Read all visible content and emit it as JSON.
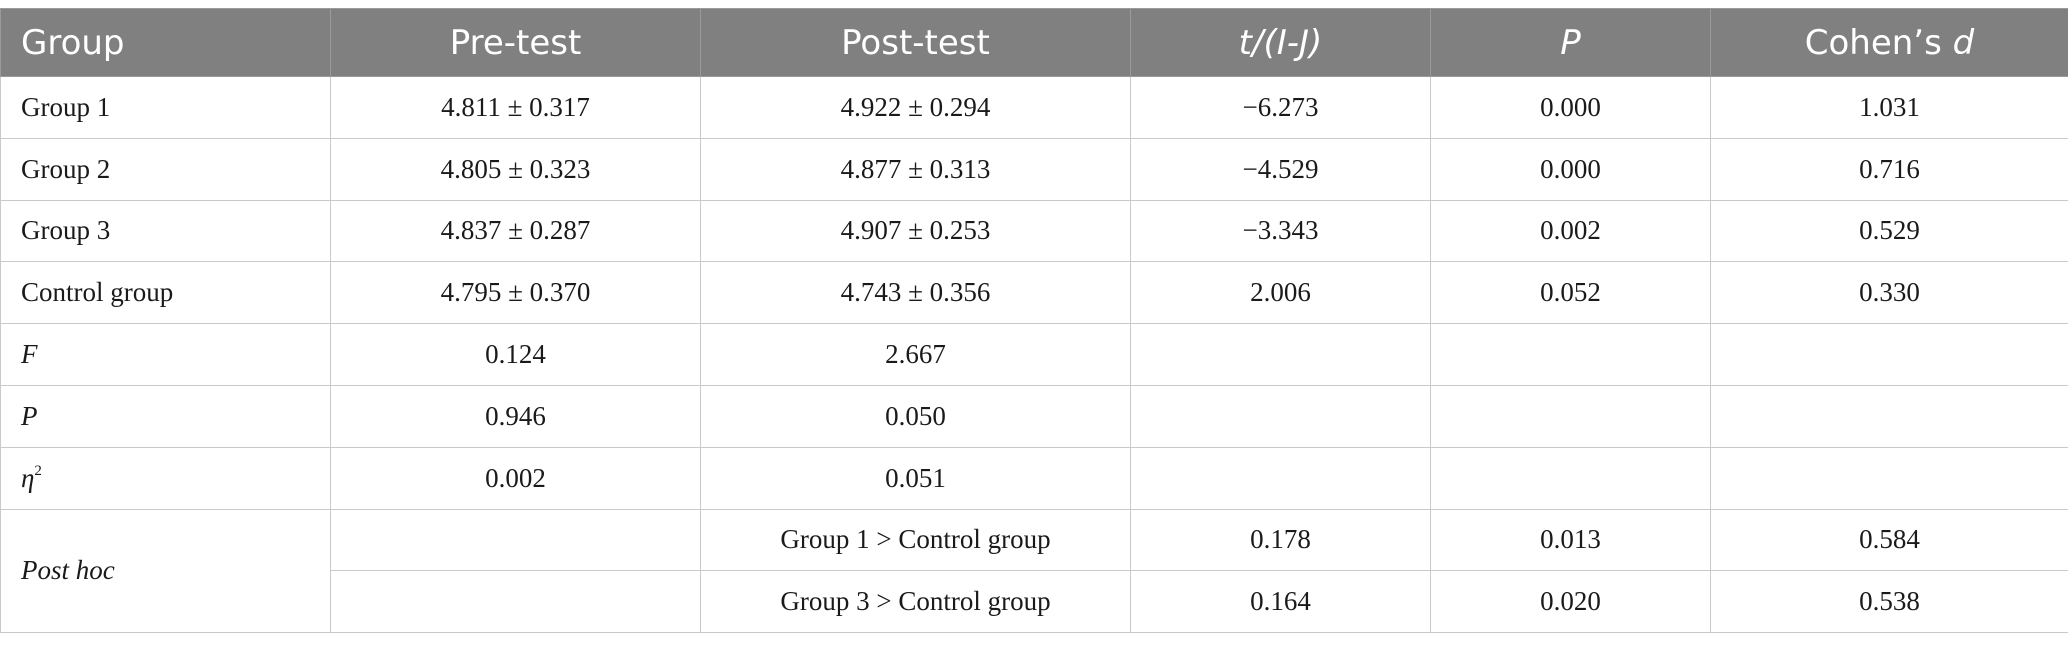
{
  "header": {
    "group": "Group",
    "pre_test": "Pre-test",
    "post_test": "Post-test",
    "t_ij": "t/(I-J)",
    "p": "P",
    "cohens_prefix": "Cohen’s ",
    "cohens_d": "d"
  },
  "rows": [
    {
      "label": "Group 1",
      "pre": "4.811 ± 0.317",
      "post": "4.922 ± 0.294",
      "t": "−6.273",
      "p": "0.000",
      "d": "1.031"
    },
    {
      "label": "Group 2",
      "pre": "4.805 ± 0.323",
      "post": "4.877 ± 0.313",
      "t": "−4.529",
      "p": "0.000",
      "d": "0.716"
    },
    {
      "label": "Group 3",
      "pre": "4.837 ± 0.287",
      "post": "4.907 ± 0.253",
      "t": "−3.343",
      "p": "0.002",
      "d": "0.529"
    },
    {
      "label": "Control group",
      "pre": "4.795 ± 0.370",
      "post": "4.743 ± 0.356",
      "t": "2.006",
      "p": "0.052",
      "d": "0.330"
    }
  ],
  "stats": [
    {
      "label": "F",
      "pre": "0.124",
      "post": "2.667"
    },
    {
      "label": "P",
      "pre": "0.946",
      "post": "0.050"
    },
    {
      "label_base": "η",
      "label_sup": "2",
      "pre": "0.002",
      "post": "0.051"
    }
  ],
  "posthoc": {
    "label": "Post hoc",
    "rows": [
      {
        "comparison": "Group 1 > Control group",
        "t": "0.178",
        "p": "0.013",
        "d": "0.584"
      },
      {
        "comparison": "Group 3 > Control group",
        "t": "0.164",
        "p": "0.020",
        "d": "0.538"
      }
    ]
  }
}
